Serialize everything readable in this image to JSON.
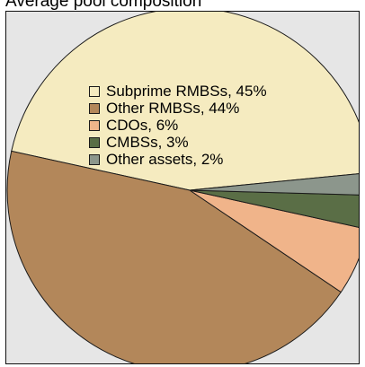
{
  "chart_data": {
    "type": "pie",
    "title": "Average pool composition",
    "slices": [
      {
        "label": "Subprime RMBSs",
        "value": 45,
        "color": "#f5ebc0"
      },
      {
        "label": "Other RMBSs",
        "value": 44,
        "color": "#b3875a"
      },
      {
        "label": "CDOs",
        "value": 6,
        "color": "#f0b48a"
      },
      {
        "label": "CMBSs",
        "value": 3,
        "color": "#5a6e46"
      },
      {
        "label": "Other assets",
        "value": 2,
        "color": "#8c968c"
      }
    ],
    "legend": {
      "placement": "upper-center-left",
      "items": [
        "Subprime RMBSs, 45%",
        "Other RMBSs, 44%",
        "CDOs, 6%",
        "CMBSs, 3%",
        "Other assets, 2%"
      ]
    },
    "colors": {
      "background": "#e6e6e6",
      "border": "#111111"
    }
  }
}
